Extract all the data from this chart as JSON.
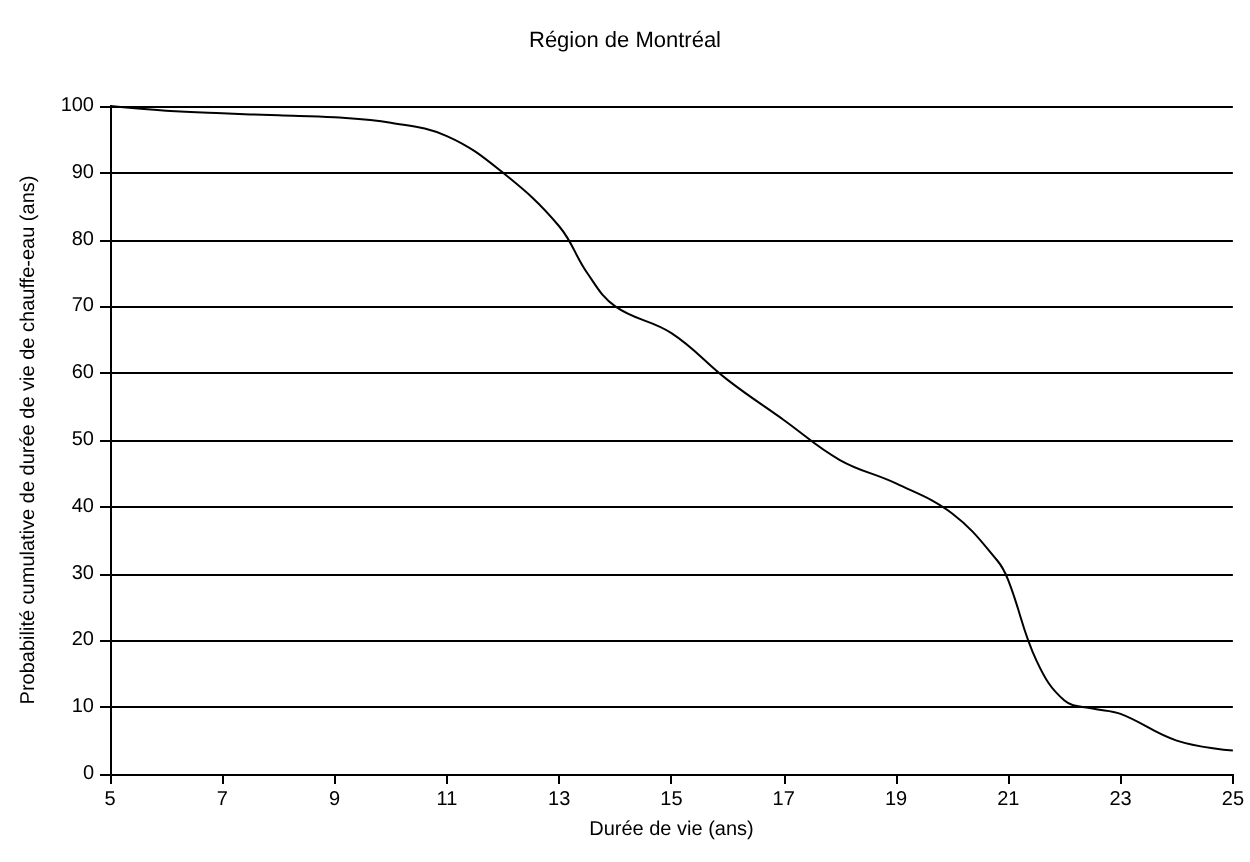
{
  "chart_data": {
    "type": "line",
    "title": "Région de Montréal",
    "xlabel": "Durée de vie (ans)",
    "ylabel": "Probabilité cumulative de durée de vie de chauffe-eau (ans)",
    "x": [
      5,
      6,
      7,
      8,
      9,
      10,
      11,
      12,
      13,
      13.5,
      14,
      15,
      16,
      17,
      18,
      19,
      20,
      20.8,
      21,
      21.5,
      22,
      22.5,
      23,
      24,
      25
    ],
    "series": [
      {
        "color": "#000000",
        "values": [
          100,
          99.3,
          98.9,
          98.6,
          98.3,
          97.5,
          95.5,
          90,
          82,
          75,
          70,
          66,
          59,
          53,
          47,
          43.5,
          39,
          32,
          29,
          17,
          11,
          9.8,
          9,
          5,
          3.5
        ]
      }
    ],
    "xlim": [
      5,
      25
    ],
    "xticks": [
      5,
      7,
      9,
      11,
      13,
      15,
      17,
      19,
      21,
      23,
      25
    ],
    "ylim": [
      0,
      100
    ],
    "yticks": [
      0,
      10,
      20,
      30,
      40,
      50,
      60,
      70,
      80,
      90,
      100
    ],
    "grid": "y",
    "marker": "none",
    "line_style": "solid"
  }
}
